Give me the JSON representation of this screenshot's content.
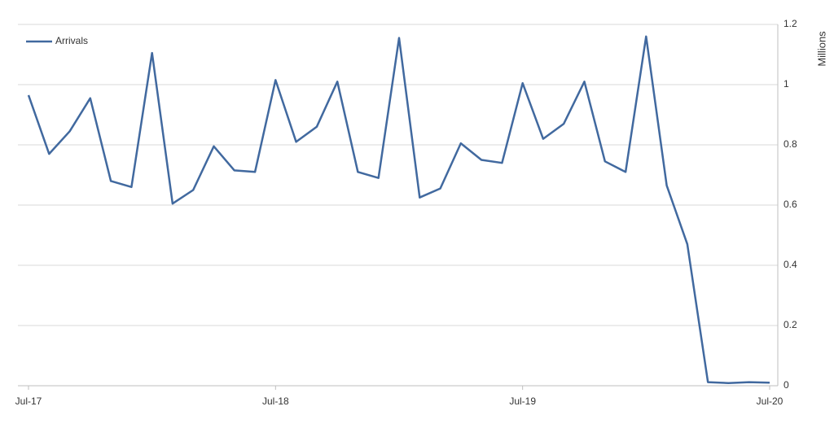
{
  "chart_data": {
    "type": "line",
    "y_axis_label": "Millions",
    "categories": [
      "Jul-17",
      null,
      null,
      null,
      null,
      null,
      null,
      null,
      null,
      null,
      null,
      null,
      "Jul-18",
      null,
      null,
      null,
      null,
      null,
      null,
      null,
      null,
      null,
      null,
      null,
      "Jul-19",
      null,
      null,
      null,
      null,
      null,
      null,
      null,
      null,
      null,
      null,
      null,
      "Jul-20"
    ],
    "series": [
      {
        "name": "Arrivals",
        "color": "#41699f",
        "values": [
          0.965,
          0.77,
          0.845,
          0.955,
          0.68,
          0.66,
          1.105,
          0.605,
          0.65,
          0.795,
          0.715,
          0.71,
          1.015,
          0.81,
          0.86,
          1.01,
          0.71,
          0.69,
          1.155,
          0.625,
          0.655,
          0.805,
          0.75,
          0.74,
          1.005,
          0.82,
          0.87,
          1.01,
          0.745,
          0.71,
          1.16,
          0.665,
          0.47,
          0.012,
          0.009,
          0.012,
          0.01
        ]
      }
    ],
    "ylim": [
      0,
      1.2
    ],
    "yticks": [
      0,
      0.2,
      0.4,
      0.6,
      0.8,
      1,
      1.2
    ],
    "grid": true,
    "legend": "top-left",
    "y_axis_side": "right"
  }
}
